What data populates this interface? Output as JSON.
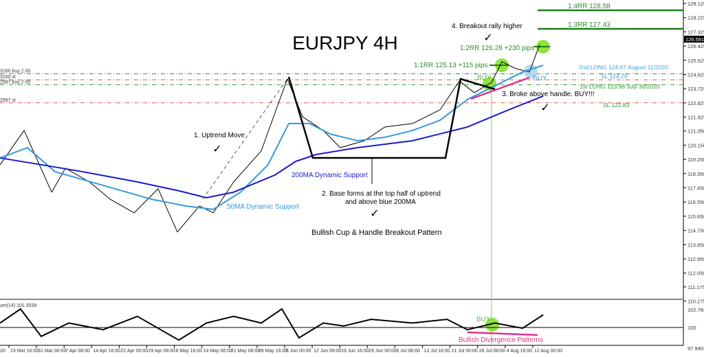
{
  "chart_data": {
    "type": "line",
    "title": "EURJPY 4H",
    "symbol_color_up": "#000000",
    "price_axis": {
      "ticks": [
        129.125,
        128.225,
        127.325,
        126.425,
        125.525,
        124.625,
        123.725,
        122.825,
        121.925,
        121.05,
        120.15,
        119.25,
        118.35,
        117.45,
        116.55,
        115.65,
        114.75,
        113.85,
        112.95,
        112.05,
        111.175,
        110.275
      ],
      "tick_labels": [
        "129.125",
        "128.225",
        "127.325",
        "126.425",
        "125.525",
        "124.625",
        "123.725",
        "122.825",
        "121.925",
        "121.050",
        "120.150",
        "119.250",
        "118.350",
        "117.450",
        "116.550",
        "115.650",
        "114.750",
        "113.850",
        "112.950",
        "112.050",
        "111.175",
        "110.275"
      ],
      "current_price": "126.591"
    },
    "time_axis": {
      "tick_labels": [
        "23 Mar 16:00",
        "31 Mar 00:00",
        "7 Apr 08:00",
        "14 Apr 16:00",
        "22 Apr 00:00",
        "29 Apr 08:00",
        "6 May 16:00",
        "14 May 00:00",
        "21 May 08:00",
        "28 May 16:00",
        "5 Jun 00:00",
        "12 Jun 08:00",
        "19 Jun 16:00",
        "29 Jun 00:00",
        "6 Jul 08:00",
        "13 Jul 16:00",
        "21 Jul 00:00",
        "28 Jul 08:00",
        "4 Aug 16:00",
        "12 Aug 00:00"
      ],
      "first_partial_label": "20",
      "x_unit": "tick index"
    },
    "series": [
      {
        "kind": "price",
        "color": "#000000",
        "points": [
          [
            -0.37,
            118.91
          ],
          [
            0.5,
            121.08
          ],
          [
            1.5,
            117.17
          ],
          [
            2.0,
            118.69
          ],
          [
            2.87,
            117.82
          ],
          [
            3.62,
            116.73
          ],
          [
            4.49,
            115.86
          ],
          [
            5.36,
            117.39
          ],
          [
            6.06,
            114.65
          ],
          [
            6.86,
            116.3
          ],
          [
            7.36,
            115.86
          ],
          [
            8.1,
            117.82
          ],
          [
            9.1,
            119.78
          ],
          [
            9.73,
            122.82
          ],
          [
            10.05,
            124.34
          ],
          [
            10.6,
            121.95
          ],
          [
            11.35,
            121.08
          ],
          [
            11.97,
            119.99
          ],
          [
            12.84,
            120.43
          ],
          [
            13.59,
            121.3
          ],
          [
            14.59,
            121.52
          ],
          [
            15.59,
            122.39
          ],
          [
            16.29,
            124.21
          ],
          [
            16.83,
            123.47
          ],
          [
            17.46,
            124.13
          ],
          [
            17.83,
            125.43
          ],
          [
            18.33,
            125.0
          ],
          [
            18.83,
            124.78
          ],
          [
            19.2,
            126.52
          ]
        ]
      },
      {
        "kind": "50MA",
        "color": "#3399dd",
        "points": [
          [
            -0.37,
            119.34
          ],
          [
            0.62,
            119.99
          ],
          [
            1.62,
            118.47
          ],
          [
            3.37,
            117.6
          ],
          [
            5.11,
            116.73
          ],
          [
            6.36,
            116.3
          ],
          [
            7.36,
            116.08
          ],
          [
            8.35,
            117.17
          ],
          [
            9.35,
            118.91
          ],
          [
            10.1,
            121.52
          ],
          [
            10.85,
            121.52
          ],
          [
            11.6,
            120.86
          ],
          [
            12.59,
            120.43
          ],
          [
            13.59,
            120.65
          ],
          [
            14.59,
            121.08
          ],
          [
            15.59,
            121.73
          ],
          [
            16.58,
            123.04
          ],
          [
            17.58,
            123.91
          ],
          [
            18.58,
            124.78
          ],
          [
            19.33,
            125.21
          ]
        ]
      },
      {
        "kind": "200MA",
        "color": "#1a1acc",
        "points": [
          [
            -0.37,
            119.34
          ],
          [
            1.12,
            118.91
          ],
          [
            2.62,
            118.47
          ],
          [
            4.61,
            117.82
          ],
          [
            6.11,
            117.26
          ],
          [
            7.11,
            116.82
          ],
          [
            8.1,
            117.17
          ],
          [
            9.6,
            118.26
          ],
          [
            10.35,
            119.12
          ],
          [
            11.1,
            119.56
          ],
          [
            12.59,
            119.99
          ],
          [
            14.59,
            120.43
          ],
          [
            16.58,
            121.3
          ],
          [
            18.08,
            122.39
          ],
          [
            19.33,
            123.26
          ]
        ]
      }
    ],
    "oscillator": {
      "label": "um(14) 101.3539",
      "ticks": [
        "102.7846",
        "100",
        "97.9403"
      ],
      "points": [
        [
          -0.37,
          100.6
        ],
        [
          0.37,
          102.5
        ],
        [
          1.12,
          98.8
        ],
        [
          2.12,
          100.6
        ],
        [
          3.37,
          99.7
        ],
        [
          4.61,
          101.5
        ],
        [
          6.11,
          98.3
        ],
        [
          7.11,
          100.6
        ],
        [
          8.1,
          101.5
        ],
        [
          9.1,
          100.6
        ],
        [
          9.85,
          102.5
        ],
        [
          10.47,
          98.6
        ],
        [
          11.35,
          100.6
        ],
        [
          12.09,
          100.2
        ],
        [
          13.09,
          101.1
        ],
        [
          14.59,
          100.6
        ],
        [
          15.84,
          101.1
        ],
        [
          16.58,
          99.7
        ],
        [
          17.58,
          100.6
        ],
        [
          18.58,
          99.9
        ],
        [
          19.33,
          101.7
        ]
      ]
    },
    "levels": [
      {
        "price": 124.67,
        "color": "#2e9a2e",
        "left_label": "3160 buy 2.00",
        "right_label": "2nd LONG 124.67 August 11/2020",
        "right_color": "#4a9ee0"
      },
      {
        "price": 124.29,
        "color": "#e05a3a",
        "left_label": "3160 sl",
        "right_label": "SL 124.29",
        "right_color": "#4a9ee0"
      },
      {
        "price": 123.98,
        "color": "#2e9a2e",
        "left_label": "2997 buy 2.00",
        "right_label": "1st LONG 123.98 July 30/2020",
        "right_color": "#2e9a2e"
      },
      {
        "price": 122.83,
        "color": "#e05a3a",
        "left_label": "2997 sl",
        "right_label": "SL 122.83",
        "right_color": "#2e9a2e"
      }
    ],
    "targets": [
      {
        "label": "1:4RR 128.58",
        "price": 128.58
      },
      {
        "label": "1:3RR 127.43",
        "price": 127.43
      },
      {
        "label": "1:2RR 126.28 +230 pips",
        "price": 126.28
      },
      {
        "label": "1:1RR 125.13 +115 pips",
        "price": 125.13
      }
    ],
    "annotations": {
      "step4": "4. Breakout rally higher",
      "step3": "3. Broke above handle. BUY!!!",
      "step1": "1. Uptrend Move",
      "step2a": "2. Base forms at the top half of uptrend",
      "step2b": "and above blue 200MA",
      "ma200": "200MA Dynamic Support",
      "ma50": "50MA Dynamic Support",
      "pattern": "Bullish Cup & Handle Breakout Pattern",
      "buy1": "BUY",
      "buy2": "BUY",
      "buy3": "BUY",
      "divergence": "Bullish Divergence Patterns",
      "check": "✓"
    },
    "colors": {
      "green": "#2e8b2e",
      "blue": "#4a9ee0",
      "pink": "#e0338a",
      "circle": "#7fe01a"
    }
  }
}
